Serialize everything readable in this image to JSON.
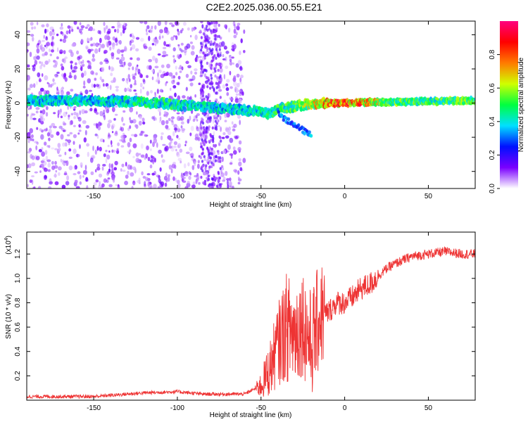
{
  "title": "C2E2.2025.036.00.55.E21",
  "chart_data": [
    {
      "type": "heatmap",
      "xlabel": "Height of straight line (km)",
      "ylabel": "Frequency (Hz)",
      "xlim": [
        -190,
        78
      ],
      "ylim": [
        -50,
        48
      ],
      "xticks": [
        -150,
        -100,
        -50,
        0,
        50
      ],
      "yticks": [
        -40,
        -20,
        0,
        20,
        40
      ],
      "colorbar": {
        "label": "Normalized spectral amplitude",
        "range": [
          0,
          1
        ],
        "ticks": [
          "0.0",
          "0.2",
          "0.4",
          "0.6",
          "0.8"
        ],
        "colors": [
          "#ffffff",
          "#7a00ff",
          "#0010ff",
          "#00e0ff",
          "#00ff40",
          "#d0ff00",
          "#ff7a00",
          "#ff0000",
          "#ff0080"
        ]
      },
      "ridge": [
        {
          "x": -190,
          "y": 1.5,
          "amp": 0.45
        },
        {
          "x": -150,
          "y": 1.5,
          "amp": 0.45
        },
        {
          "x": -120,
          "y": 0.5,
          "amp": 0.5
        },
        {
          "x": -100,
          "y": -1.0,
          "amp": 0.5
        },
        {
          "x": -80,
          "y": -2.5,
          "amp": 0.45
        },
        {
          "x": -60,
          "y": -4.0,
          "amp": 0.45
        },
        {
          "x": -45,
          "y": -6.0,
          "amp": 0.5
        },
        {
          "x": -38,
          "y": -3.0,
          "amp": 0.55
        },
        {
          "x": -30,
          "y": -2.0,
          "amp": 0.55
        },
        {
          "x": -20,
          "y": -0.5,
          "amp": 0.65
        },
        {
          "x": -10,
          "y": 0.0,
          "amp": 0.85
        },
        {
          "x": 0,
          "y": 0.0,
          "amp": 0.9
        },
        {
          "x": 10,
          "y": 0.5,
          "amp": 0.85
        },
        {
          "x": 25,
          "y": 0.5,
          "amp": 0.6
        },
        {
          "x": 50,
          "y": 1.0,
          "amp": 0.55
        },
        {
          "x": 78,
          "y": 1.5,
          "amp": 0.6
        }
      ],
      "branch": [
        {
          "x": -40,
          "y": -5,
          "amp": 0.35
        },
        {
          "x": -35,
          "y": -10,
          "amp": 0.3
        },
        {
          "x": -28,
          "y": -14,
          "amp": 0.3
        },
        {
          "x": -20,
          "y": -19,
          "amp": 0.35
        }
      ]
    },
    {
      "type": "line",
      "xlabel": "Height of straight line (km)",
      "ylabel": "SNR (10 * v/v)",
      "yscale_label": "(x10",
      "yscale_exp": "4",
      "xlim": [
        -190,
        78
      ],
      "ylim": [
        0,
        1.38
      ],
      "xticks": [
        -150,
        -100,
        -50,
        0,
        50
      ],
      "yticks": [
        "0.2",
        "0.4",
        "0.6",
        "0.8",
        "1.0",
        "1.2"
      ],
      "color": "#ee3333",
      "series": [
        {
          "x": [
            -190,
            -150,
            -120,
            -100,
            -85,
            -75,
            -60,
            -50,
            -45,
            -40,
            -35,
            -30,
            -25,
            -20,
            -15,
            -10,
            -5,
            0,
            5,
            10,
            15,
            20,
            25,
            30,
            35,
            40,
            50,
            60,
            70,
            78
          ],
          "y": [
            0.03,
            0.03,
            0.06,
            0.07,
            0.05,
            0.05,
            0.05,
            0.12,
            0.25,
            0.45,
            0.6,
            0.55,
            0.65,
            0.45,
            0.7,
            0.72,
            0.8,
            0.8,
            0.85,
            0.92,
            0.95,
            1.02,
            1.08,
            1.12,
            1.15,
            1.18,
            1.2,
            1.22,
            1.2,
            1.2
          ]
        }
      ]
    }
  ]
}
